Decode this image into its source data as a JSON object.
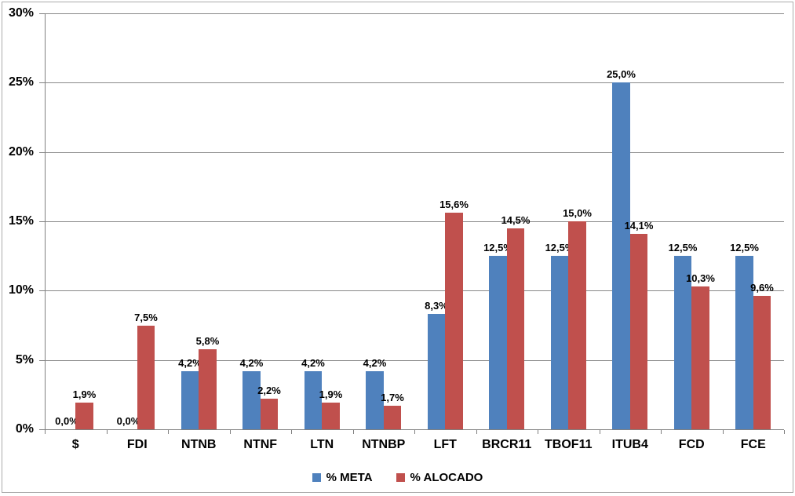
{
  "chart_data": {
    "type": "bar",
    "title": "",
    "xlabel": "",
    "ylabel": "",
    "categories": [
      "$",
      "FDI",
      "NTNB",
      "NTNF",
      "LTN",
      "NTNBP",
      "LFT",
      "BRCR11",
      "TBOF11",
      "ITUB4",
      "FCD",
      "FCE"
    ],
    "series": [
      {
        "name": "% META",
        "values": [
          0.0,
          0.0,
          4.2,
          4.2,
          4.2,
          4.2,
          8.3,
          12.5,
          12.5,
          25.0,
          12.5,
          12.5
        ],
        "labels": [
          "0,0%",
          "0,0%",
          "4,2%",
          "4,2%",
          "4,2%",
          "4,2%",
          "8,3%",
          "12,5%",
          "12,5%",
          "25,0%",
          "12,5%",
          "12,5%"
        ]
      },
      {
        "name": "% ALOCADO",
        "values": [
          1.9,
          7.5,
          5.8,
          2.2,
          1.9,
          1.7,
          15.6,
          14.5,
          15.0,
          14.1,
          10.3,
          9.6
        ],
        "labels": [
          "1,9%",
          "7,5%",
          "5,8%",
          "2,2%",
          "1,9%",
          "1,7%",
          "15,6%",
          "14,5%",
          "15,0%",
          "14,1%",
          "10,3%",
          "9,6%"
        ]
      }
    ],
    "ylim": [
      0,
      30
    ],
    "ytick_step": 5,
    "ytick_labels": [
      "0%",
      "5%",
      "10%",
      "15%",
      "20%",
      "25%",
      "30%"
    ],
    "grid": true,
    "legend_position": "bottom",
    "decimal_separator": ","
  },
  "colors": {
    "series_meta": "#4F81BD",
    "series_alocado": "#C0504D",
    "gridline": "#898989",
    "axis": "#808080",
    "text": "#000000",
    "frame_border": "#ABABAB",
    "background": "#FFFFFF"
  }
}
